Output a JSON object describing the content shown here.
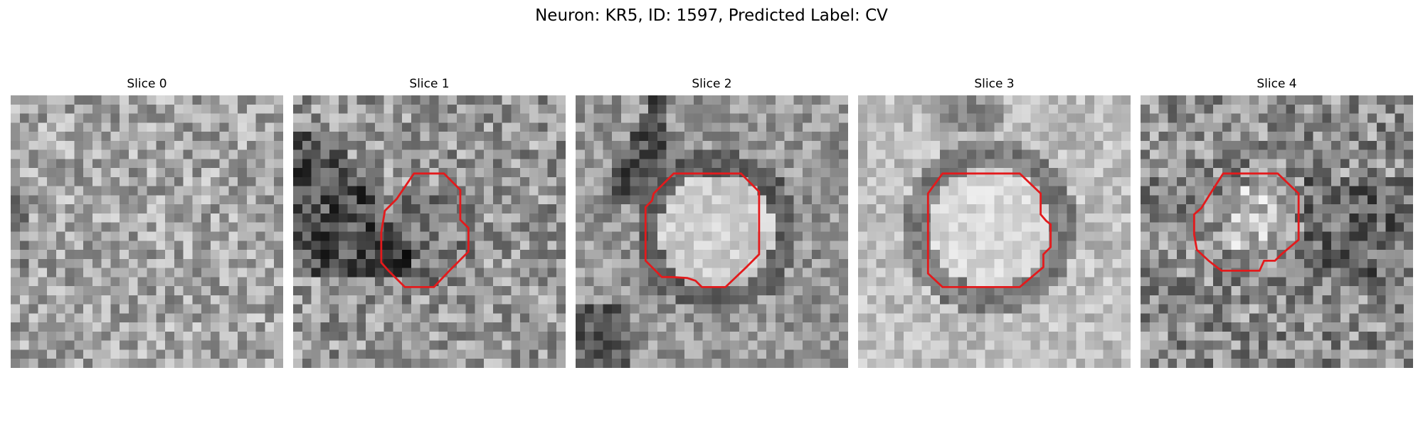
{
  "figure": {
    "suptitle": "Neuron: KR5, ID: 1597, Predicted Label: CV"
  },
  "panels": [
    {
      "title": "Slice 0",
      "has_contour": false
    },
    {
      "title": "Slice 1",
      "has_contour": true
    },
    {
      "title": "Slice 2",
      "has_contour": true
    },
    {
      "title": "Slice 3",
      "has_contour": true
    },
    {
      "title": "Slice 4",
      "has_contour": true
    }
  ],
  "colors": {
    "contour": "#e31a1c",
    "colormap": "gray"
  }
}
